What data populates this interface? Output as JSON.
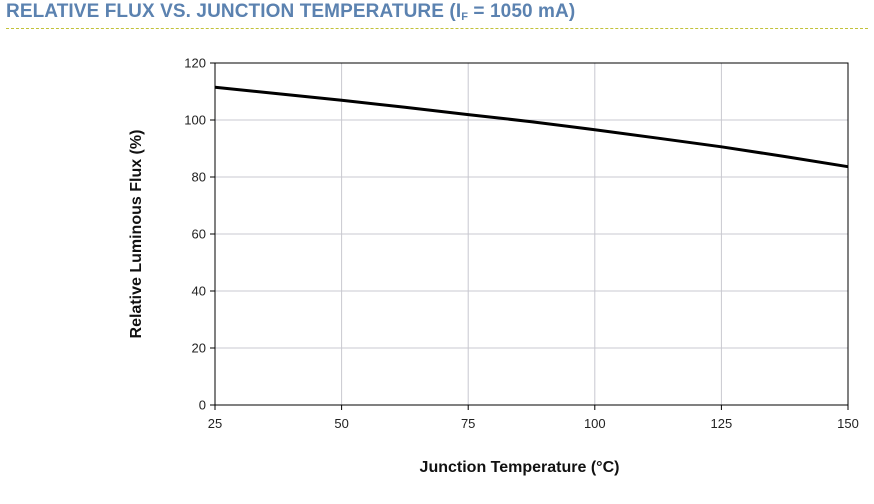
{
  "header": {
    "title_main": "RELATIVE FLUX VS. JUNCTION TEMPERATURE (I",
    "title_sub": "F",
    "title_tail": " = 1050 mA)"
  },
  "colors": {
    "title": "#5b82b0",
    "rule": "#c2c23a",
    "grid": "#c8c8d0",
    "line": "#000000"
  },
  "chart_data": {
    "type": "line",
    "title": "RELATIVE FLUX VS. JUNCTION TEMPERATURE (IF = 1050 mA)",
    "xlabel": "Junction Temperature (°C)",
    "ylabel": "Relative Luminous Flux (%)",
    "xlim": [
      25,
      150
    ],
    "ylim": [
      0,
      120
    ],
    "xticks": [
      25,
      50,
      75,
      100,
      125,
      150
    ],
    "yticks": [
      0,
      20,
      40,
      60,
      80,
      100,
      120
    ],
    "grid": true,
    "series": [
      {
        "x": [
          25,
          37.5,
          50,
          62.5,
          75,
          87.5,
          100,
          112.5,
          125,
          137.5,
          150
        ],
        "y": [
          111.5,
          109.2,
          106.9,
          104.5,
          101.9,
          99.4,
          96.6,
          93.6,
          90.6,
          87.2,
          83.6
        ]
      }
    ]
  }
}
